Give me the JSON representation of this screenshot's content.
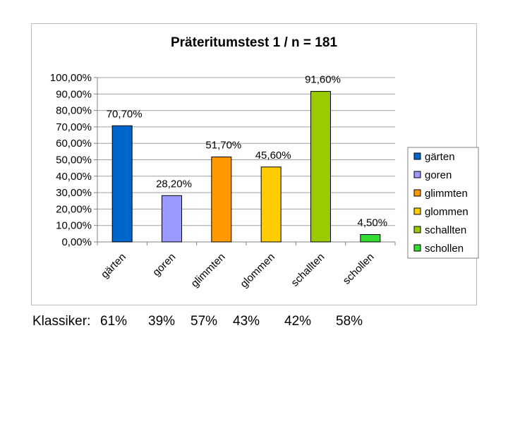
{
  "chart_data": {
    "type": "bar",
    "title": "Präteritumstest 1 / n = 181",
    "categories": [
      "gärten",
      "goren",
      "glimmten",
      "glommen",
      "schallten",
      "schollen"
    ],
    "values": [
      70.7,
      28.2,
      51.7,
      45.6,
      91.6,
      4.5
    ],
    "value_labels": [
      "70,70%",
      "28,20%",
      "51,70%",
      "45,60%",
      "91,60%",
      "4,50%"
    ],
    "colors": [
      "#0066CC",
      "#9999FF",
      "#FF9900",
      "#FFCC00",
      "#99CC00",
      "#33DD33"
    ],
    "ylim": [
      0,
      100
    ],
    "yticks": [
      "0,00%",
      "10,00%",
      "20,00%",
      "30,00%",
      "40,00%",
      "50,00%",
      "60,00%",
      "70,00%",
      "80,00%",
      "90,00%",
      "100,00%"
    ],
    "grid": true,
    "legend_position": "right",
    "legend": [
      "gärten",
      "goren",
      "glimmten",
      "glommen",
      "schallten",
      "schollen"
    ]
  },
  "footer": {
    "label": "Klassiker:",
    "values": [
      "61%",
      "39%",
      "57%",
      "43%",
      "42%",
      "58%"
    ]
  }
}
